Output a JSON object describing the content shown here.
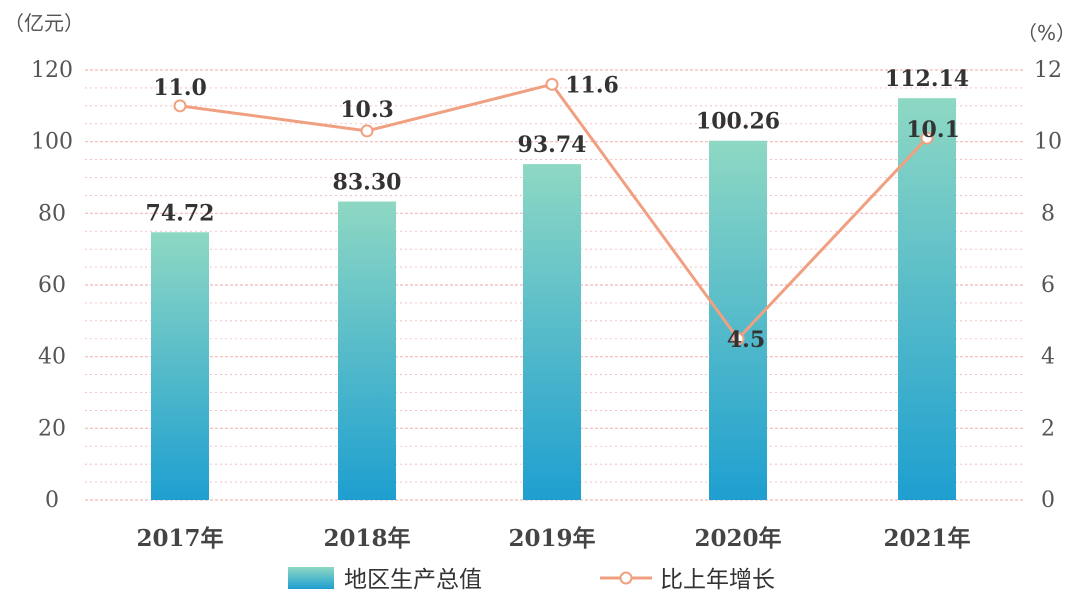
{
  "chart_data": {
    "type": "bar",
    "categories": [
      "2017年",
      "2018年",
      "2019年",
      "2020年",
      "2021年"
    ],
    "series": [
      {
        "name": "地区生产总值",
        "type": "bar",
        "axis": "left",
        "values": [
          74.72,
          83.3,
          93.74,
          100.26,
          112.14
        ],
        "labels": [
          "74.72",
          "83.30",
          "93.74",
          "100.26",
          "112.14"
        ]
      },
      {
        "name": "比上年增长",
        "type": "line",
        "axis": "right",
        "values": [
          11.0,
          10.3,
          11.6,
          4.5,
          10.1
        ],
        "labels": [
          "11.0",
          "10.3",
          "11.6",
          "4.5",
          "10.1"
        ]
      }
    ],
    "left_axis": {
      "unit": "（亿元）",
      "ylim": [
        0,
        120
      ],
      "ticks": [
        "0",
        "20",
        "40",
        "60",
        "80",
        "100",
        "120"
      ]
    },
    "right_axis": {
      "unit": "（%）",
      "ylim": [
        0,
        12
      ],
      "ticks": [
        "0",
        "2",
        "4",
        "6",
        "8",
        "10",
        "12"
      ]
    },
    "grid": true,
    "legend_position": "bottom",
    "colors": {
      "bar_top": "#8ed8c3",
      "bar_bottom": "#1e9fd0",
      "line": "#f0a080",
      "marker_fill": "#ffffff",
      "grid": "#f2b7b7"
    }
  }
}
